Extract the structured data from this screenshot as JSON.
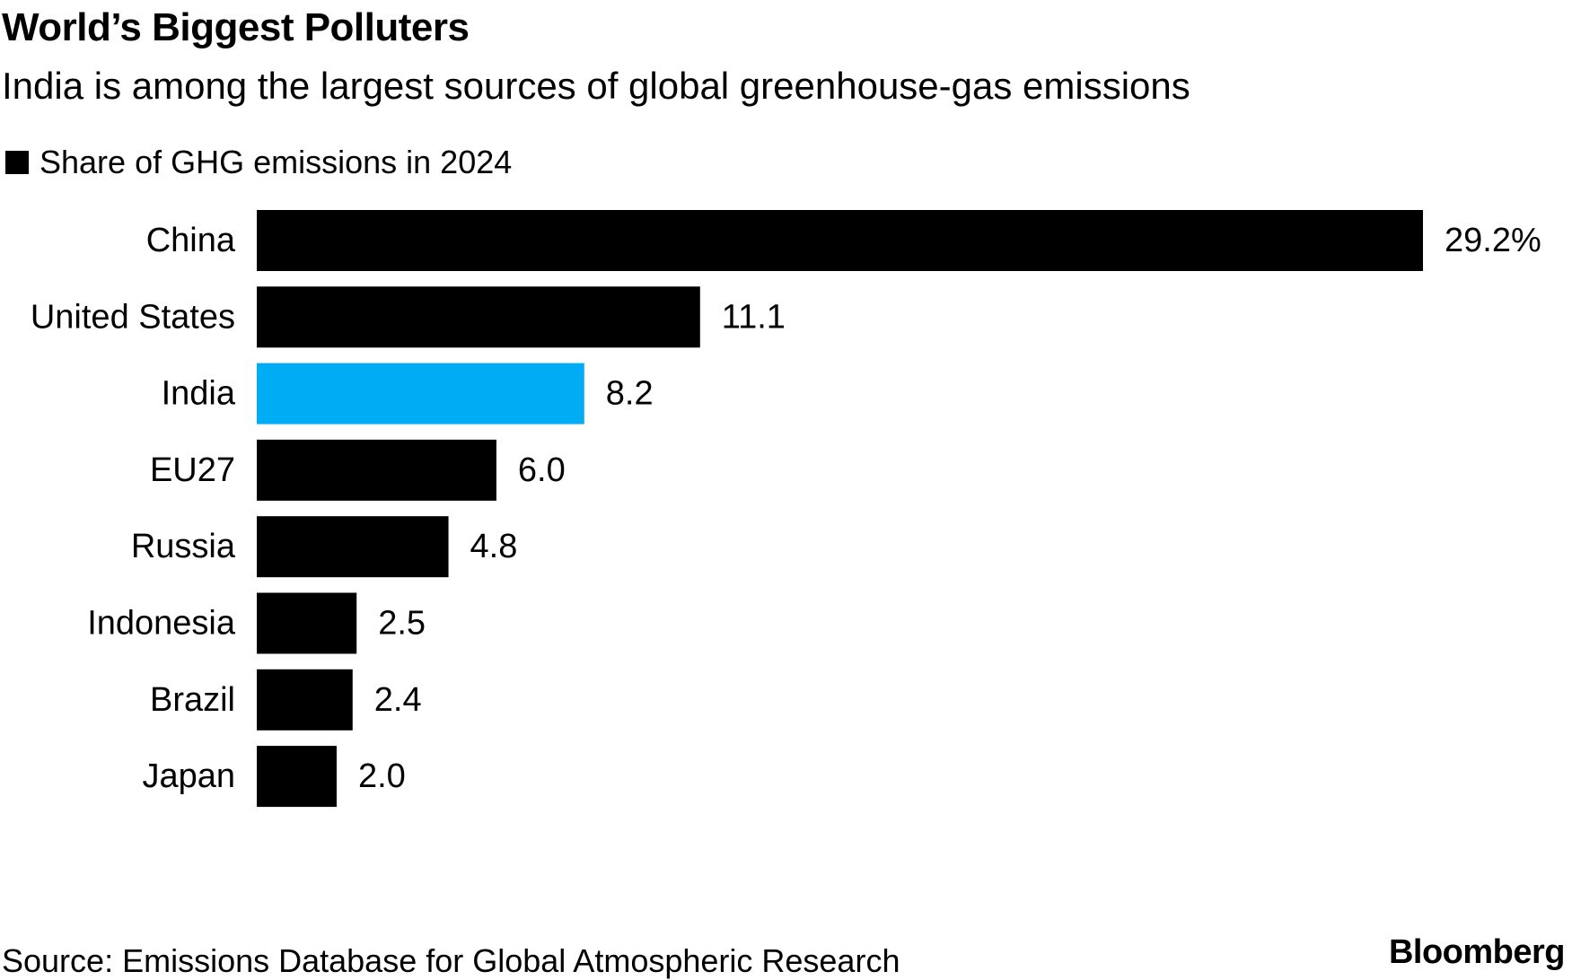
{
  "chart_data": {
    "type": "bar",
    "orientation": "horizontal",
    "title": "World’s Biggest Polluters",
    "subtitle": "India is among the largest sources of global greenhouse-gas emissions",
    "legend": "Share of GHG emissions in 2024",
    "categories": [
      "China",
      "United States",
      "India",
      "EU27",
      "Russia",
      "Indonesia",
      "Brazil",
      "Japan"
    ],
    "values": [
      29.2,
      11.1,
      8.2,
      6.0,
      4.8,
      2.5,
      2.4,
      2.0
    ],
    "value_labels": [
      "29.2%",
      "11.1",
      "8.2",
      "6.0",
      "4.8",
      "2.5",
      "2.4",
      "2.0"
    ],
    "highlight": "India",
    "xlim": [
      0,
      29.2
    ],
    "grid": false
  },
  "colors": {
    "default_bar": "#000000",
    "highlight_bar": "#00adf5",
    "text": "#000000",
    "background": "#ffffff"
  },
  "footer": {
    "source": "Source: Emissions Database for Global Atmospheric Research",
    "brand": "Bloomberg"
  }
}
